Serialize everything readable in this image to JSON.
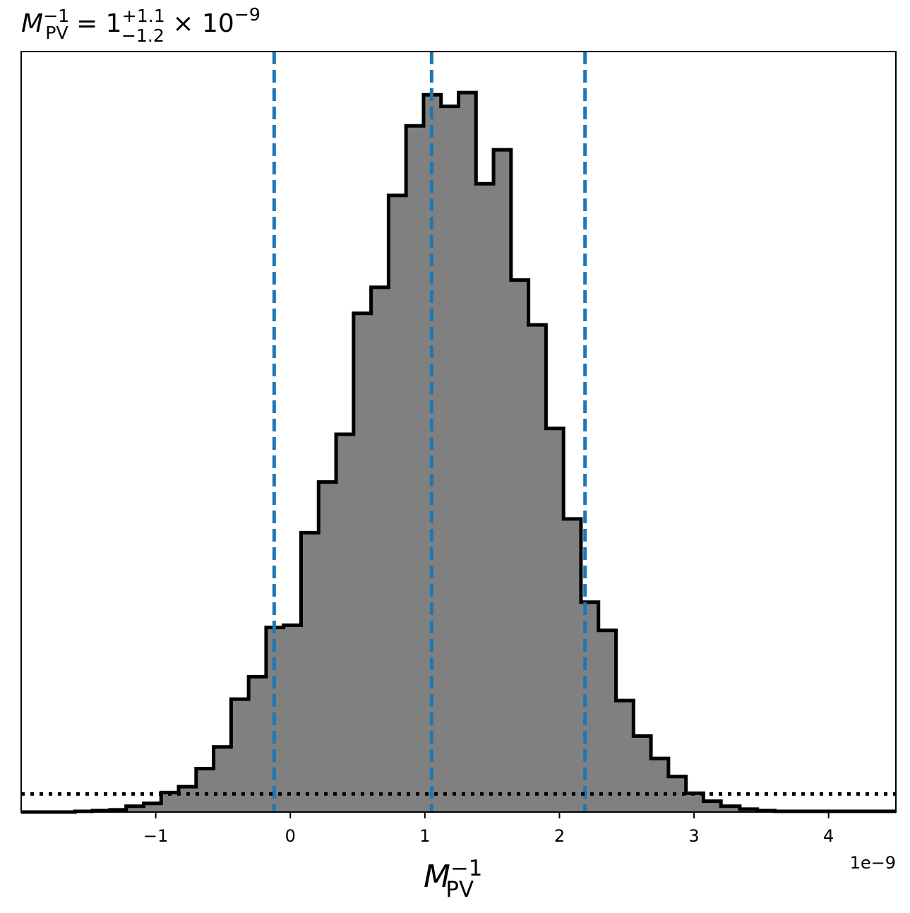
{
  "chart_data": {
    "type": "histogram",
    "title": {
      "lhs": "M",
      "lhs_sup": "−1",
      "lhs_sub": "PV",
      "eq": " = 1",
      "err_plus": "+1.1",
      "err_minus": "−1.2",
      "times": " × 10",
      "exp": "−9"
    },
    "xlabel": {
      "base": "M",
      "sup": "−1",
      "sub": "PV"
    },
    "x_offset_label": "1e−9",
    "xlim": [
      -2.0,
      4.5
    ],
    "ylim": [
      0,
      1.0
    ],
    "x_ticks": [
      {
        "value": -1,
        "label": "−1"
      },
      {
        "value": 0,
        "label": "0"
      },
      {
        "value": 1,
        "label": "1"
      },
      {
        "value": 2,
        "label": "2"
      },
      {
        "value": 3,
        "label": "3"
      },
      {
        "value": 4,
        "label": "4"
      }
    ],
    "bins": [
      {
        "x0": -2.0,
        "x1": -1.6,
        "h": 0.0
      },
      {
        "x0": -1.6,
        "x1": -1.47,
        "h": 0.001
      },
      {
        "x0": -1.47,
        "x1": -1.34,
        "h": 0.002
      },
      {
        "x0": -1.34,
        "x1": -1.22,
        "h": 0.003
      },
      {
        "x0": -1.22,
        "x1": -1.09,
        "h": 0.008
      },
      {
        "x0": -1.09,
        "x1": -0.96,
        "h": 0.012
      },
      {
        "x0": -0.96,
        "x1": -0.83,
        "h": 0.027
      },
      {
        "x0": -0.83,
        "x1": -0.7,
        "h": 0.035
      },
      {
        "x0": -0.7,
        "x1": -0.57,
        "h": 0.06
      },
      {
        "x0": -0.57,
        "x1": -0.44,
        "h": 0.09
      },
      {
        "x0": -0.44,
        "x1": -0.31,
        "h": 0.156
      },
      {
        "x0": -0.31,
        "x1": -0.18,
        "h": 0.187
      },
      {
        "x0": -0.18,
        "x1": -0.05,
        "h": 0.255
      },
      {
        "x0": -0.05,
        "x1": 0.08,
        "h": 0.258
      },
      {
        "x0": 0.08,
        "x1": 0.21,
        "h": 0.386
      },
      {
        "x0": 0.21,
        "x1": 0.34,
        "h": 0.456
      },
      {
        "x0": 0.34,
        "x1": 0.47,
        "h": 0.522
      },
      {
        "x0": 0.47,
        "x1": 0.6,
        "h": 0.689
      },
      {
        "x0": 0.6,
        "x1": 0.73,
        "h": 0.725
      },
      {
        "x0": 0.73,
        "x1": 0.86,
        "h": 0.852
      },
      {
        "x0": 0.86,
        "x1": 0.99,
        "h": 0.948
      },
      {
        "x0": 0.99,
        "x1": 1.12,
        "h": 0.991
      },
      {
        "x0": 1.12,
        "x1": 1.25,
        "h": 0.975
      },
      {
        "x0": 1.25,
        "x1": 1.38,
        "h": 0.994
      },
      {
        "x0": 1.38,
        "x1": 1.51,
        "h": 0.868
      },
      {
        "x0": 1.51,
        "x1": 1.64,
        "h": 0.915
      },
      {
        "x0": 1.64,
        "x1": 1.77,
        "h": 0.735
      },
      {
        "x0": 1.77,
        "x1": 1.9,
        "h": 0.673
      },
      {
        "x0": 1.9,
        "x1": 2.03,
        "h": 0.53
      },
      {
        "x0": 2.03,
        "x1": 2.16,
        "h": 0.405
      },
      {
        "x0": 2.16,
        "x1": 2.29,
        "h": 0.29
      },
      {
        "x0": 2.29,
        "x1": 2.42,
        "h": 0.251
      },
      {
        "x0": 2.42,
        "x1": 2.55,
        "h": 0.154
      },
      {
        "x0": 2.55,
        "x1": 2.68,
        "h": 0.105
      },
      {
        "x0": 2.68,
        "x1": 2.81,
        "h": 0.074
      },
      {
        "x0": 2.81,
        "x1": 2.94,
        "h": 0.049
      },
      {
        "x0": 2.94,
        "x1": 3.07,
        "h": 0.026
      },
      {
        "x0": 3.07,
        "x1": 3.2,
        "h": 0.015
      },
      {
        "x0": 3.2,
        "x1": 3.34,
        "h": 0.008
      },
      {
        "x0": 3.34,
        "x1": 3.47,
        "h": 0.004
      },
      {
        "x0": 3.47,
        "x1": 3.6,
        "h": 0.002
      },
      {
        "x0": 3.6,
        "x1": 4.5,
        "h": 0.001
      }
    ],
    "quantile_lines": [
      {
        "name": "lower",
        "x": -0.12
      },
      {
        "name": "median",
        "x": 1.05
      },
      {
        "name": "upper",
        "x": 2.19
      }
    ],
    "reference_level": 0.025,
    "colors": {
      "fill": "#808080",
      "edge": "#000000",
      "quantile": "#1f77b4",
      "reference": "#000000"
    }
  }
}
